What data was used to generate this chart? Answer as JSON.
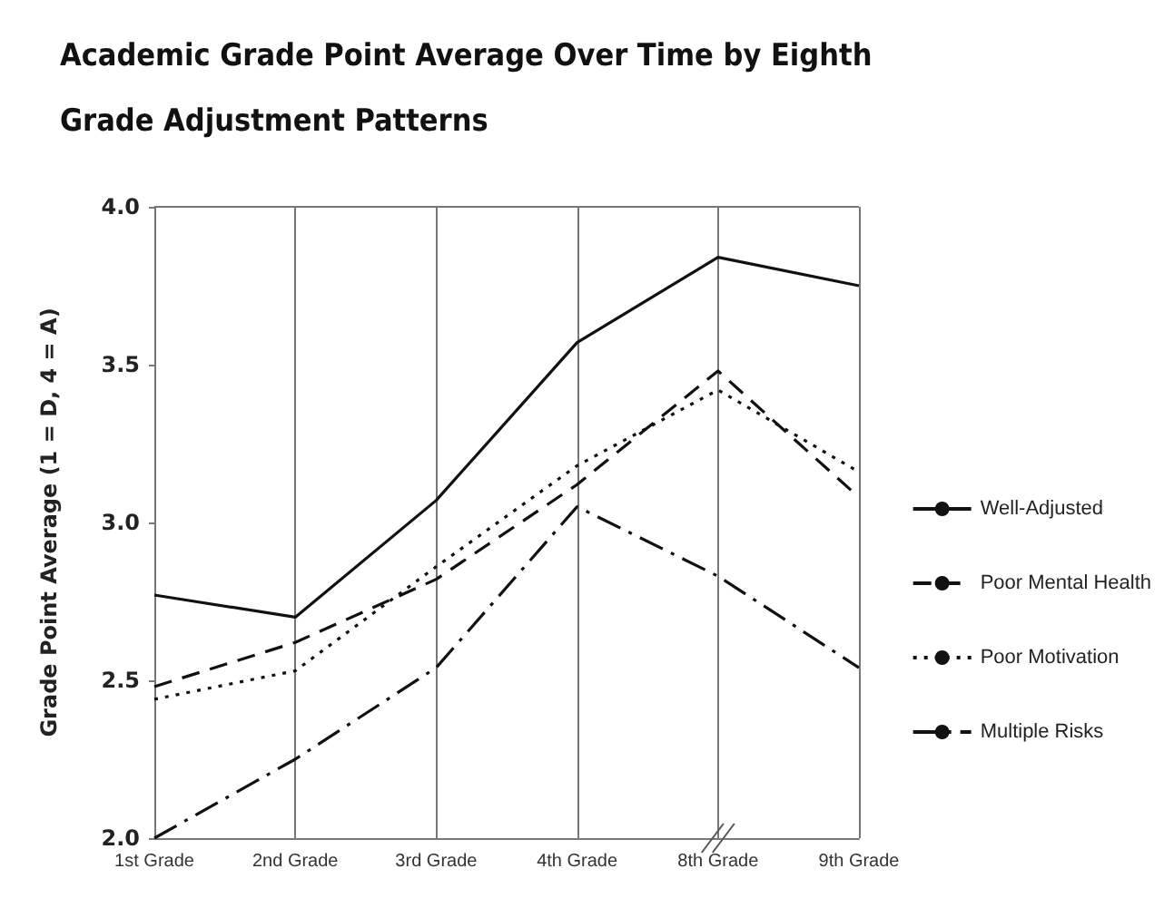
{
  "chart_data": {
    "type": "line",
    "title": "Academic Grade Point Average Over Time by Eighth Grade Adjustment Patterns",
    "ylabel": "Grade Point Average (1 = D, 4 = A)",
    "categories": [
      "1st Grade",
      "2nd Grade",
      "3rd Grade",
      "4th Grade",
      "8th Grade",
      "9th Grade"
    ],
    "series": [
      {
        "name": "Well-Adjusted",
        "color": "#111111",
        "line_style": "solid",
        "values": [
          2.77,
          2.7,
          3.07,
          3.57,
          3.84,
          3.75
        ]
      },
      {
        "name": "Poor Mental Health",
        "color": "#111111",
        "line_style": "dashed",
        "values": [
          2.48,
          2.62,
          2.82,
          3.12,
          3.48,
          3.08
        ]
      },
      {
        "name": "Poor Motivation",
        "color": "#111111",
        "line_style": "dotted",
        "values": [
          2.44,
          2.53,
          2.86,
          3.18,
          3.42,
          3.16
        ]
      },
      {
        "name": "Multiple Risks",
        "color": "#111111",
        "line_style": "dashdot",
        "values": [
          2.0,
          2.25,
          2.54,
          3.05,
          2.83,
          2.54
        ]
      }
    ],
    "ylim": [
      2.0,
      4.0
    ],
    "yticks": [
      {
        "value": 2.0,
        "label": "2.0"
      },
      {
        "value": 2.5,
        "label": "2.5"
      },
      {
        "value": 3.0,
        "label": "3.0"
      },
      {
        "value": 3.5,
        "label": "3.5"
      },
      {
        "value": 4.0,
        "label": "4.0"
      }
    ],
    "grid": "x",
    "legend": "right",
    "marker": "none"
  }
}
